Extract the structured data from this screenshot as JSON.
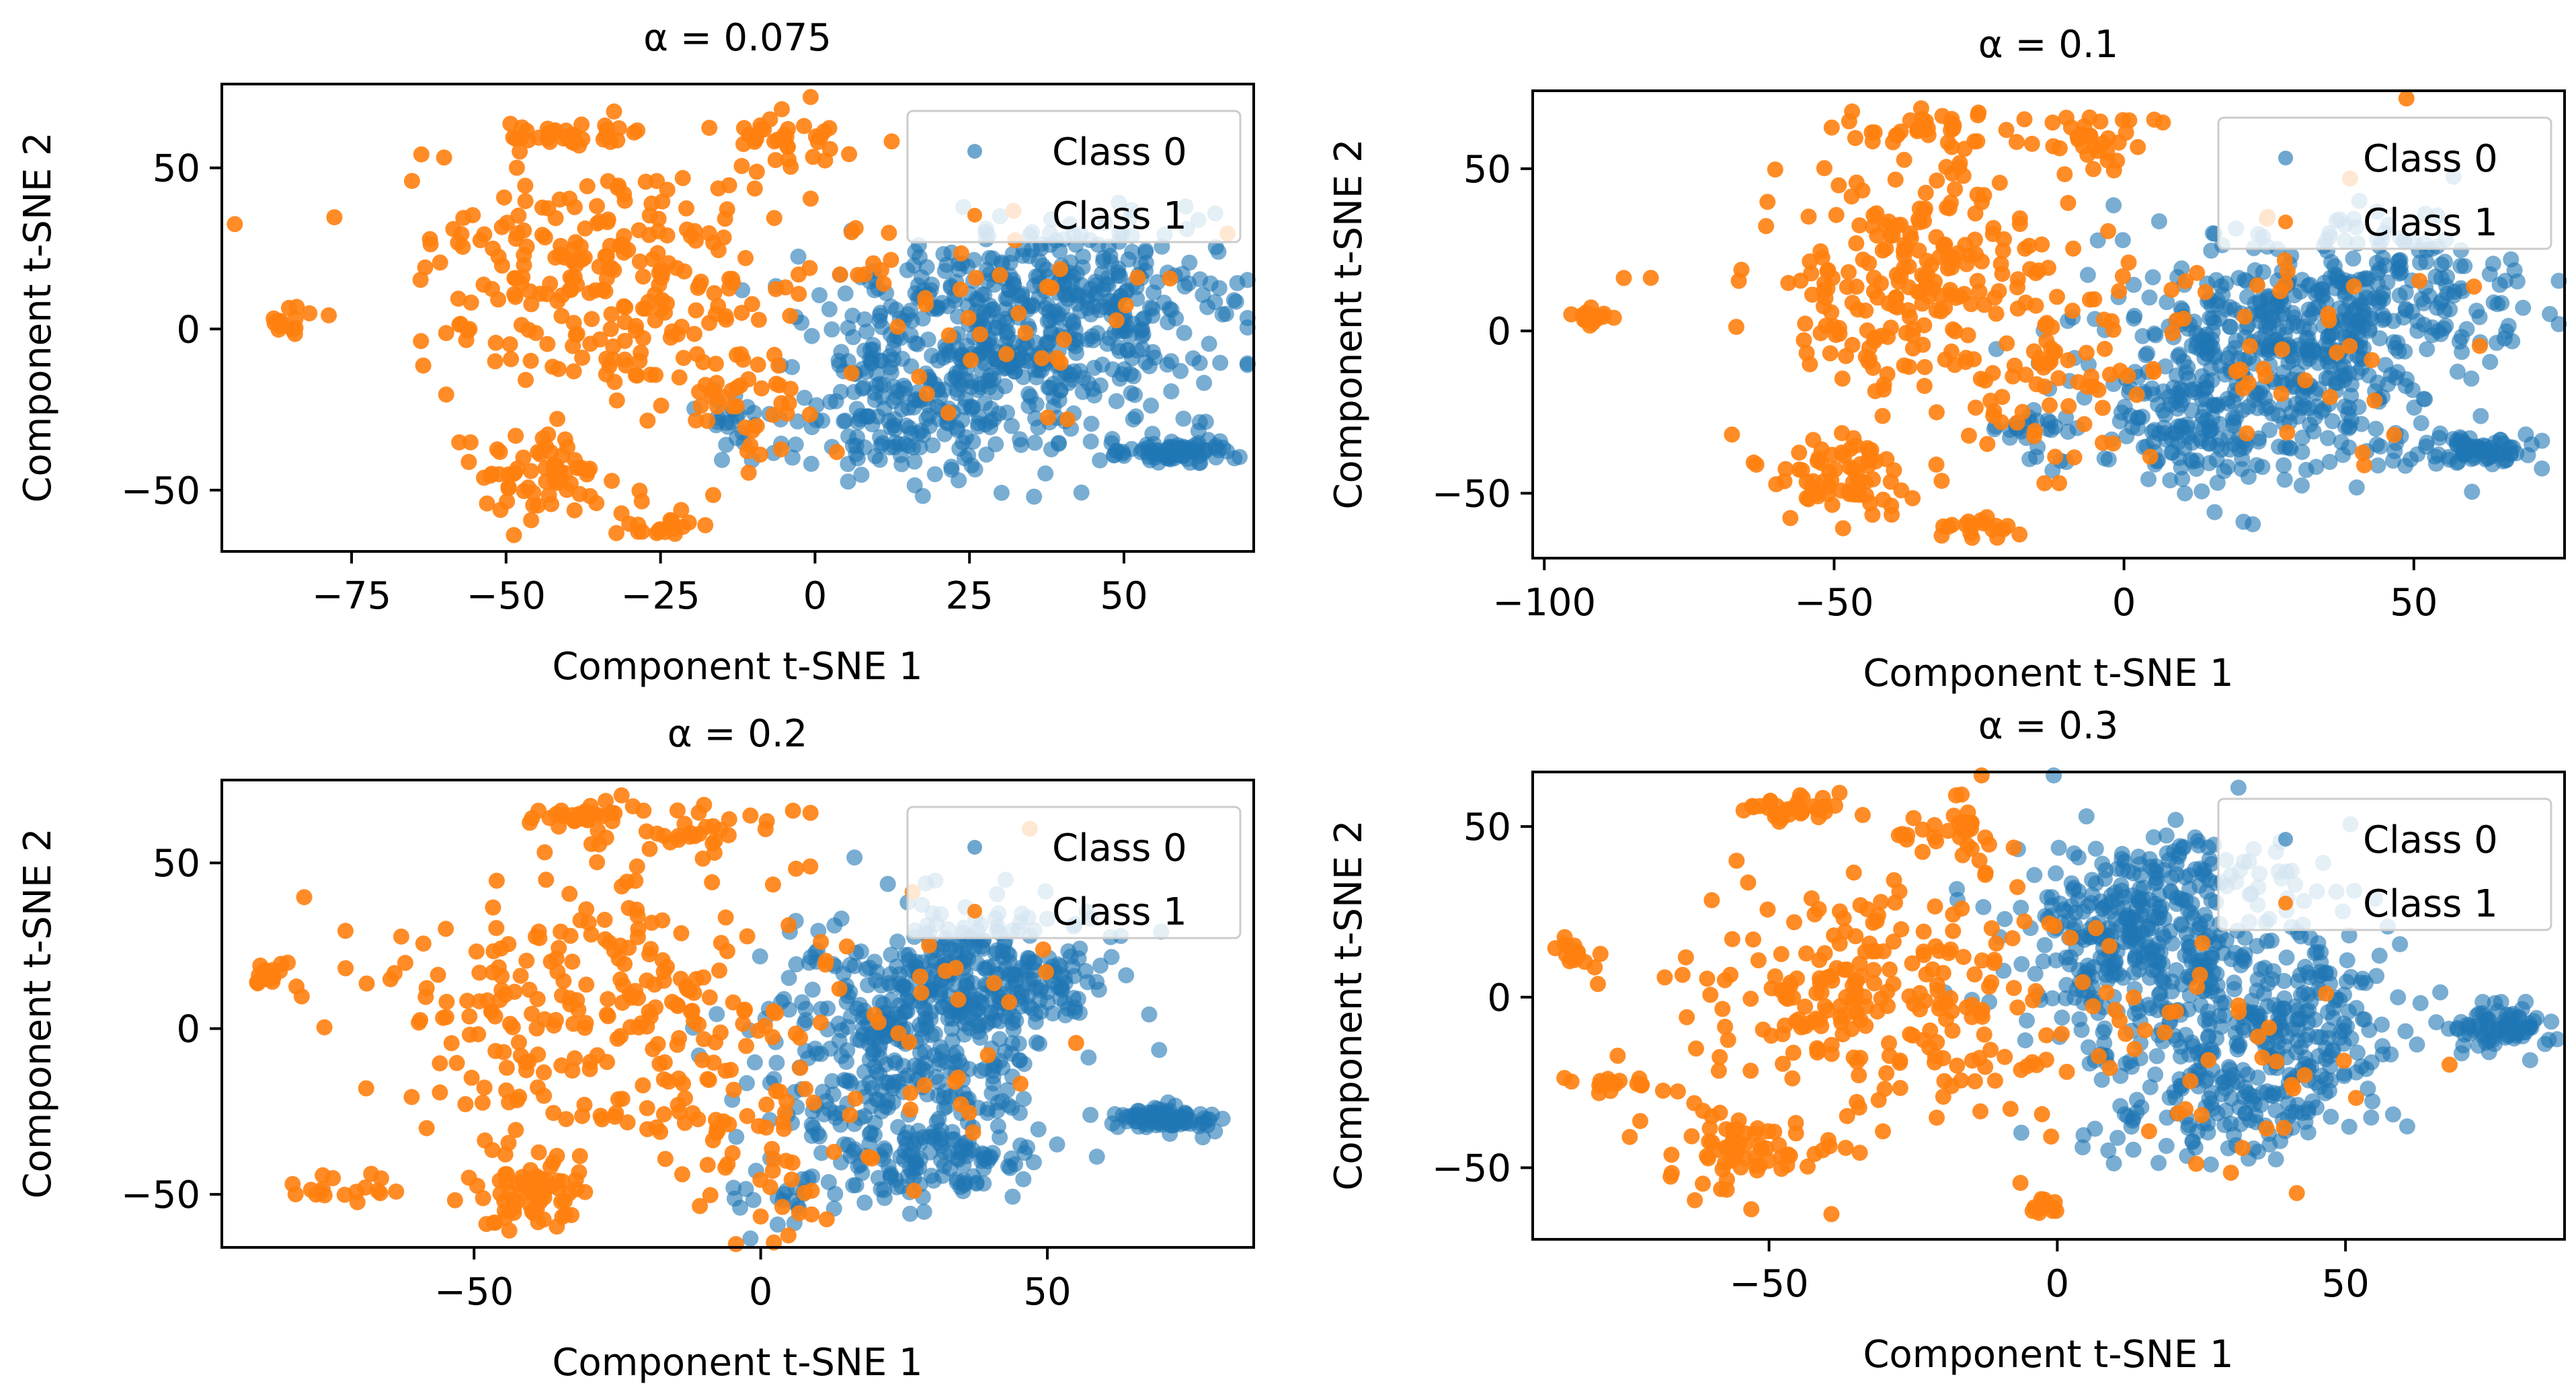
{
  "colors": {
    "class0": "#1f77b4",
    "class1": "#ff7f0e"
  },
  "chart_data": [
    {
      "type": "scatter",
      "title": "α = 0.075",
      "xlabel": "Component t-SNE 1",
      "ylabel": "Component t-SNE 2",
      "xlim": [
        -96,
        71
      ],
      "ylim": [
        -69,
        76
      ],
      "xticks": [
        -75,
        -50,
        -25,
        0,
        25,
        50
      ],
      "yticks": [
        -50,
        0,
        50
      ],
      "grid": false,
      "legend_position": "top-right",
      "series": [
        {
          "name": "Class 0",
          "color": "#1f77b4",
          "clusters": [
            {
              "cx": 28,
              "cy": -8,
              "sx": 15,
              "sy": 17,
              "n": 420
            },
            {
              "cx": 45,
              "cy": 12,
              "sx": 12,
              "sy": 12,
              "n": 200
            },
            {
              "cx": 14,
              "cy": -30,
              "sx": 8,
              "sy": 10,
              "n": 90
            },
            {
              "cx": 58,
              "cy": -38,
              "sx": 5,
              "sy": 2,
              "n": 80
            },
            {
              "cx": -12,
              "cy": -30,
              "sx": 4,
              "sy": 5,
              "n": 25
            }
          ]
        },
        {
          "name": "Class 1",
          "color": "#ff7f0e",
          "clusters": [
            {
              "cx": -35,
              "cy": 15,
              "sx": 16,
              "sy": 18,
              "n": 240
            },
            {
              "cx": -45,
              "cy": -45,
              "sx": 6,
              "sy": 7,
              "n": 70
            },
            {
              "cx": -38,
              "cy": 60,
              "sx": 6,
              "sy": 3,
              "n": 35
            },
            {
              "cx": -5,
              "cy": 60,
              "sx": 6,
              "sy": 5,
              "n": 35
            },
            {
              "cx": -85,
              "cy": 3,
              "sx": 2,
              "sy": 3,
              "n": 15
            },
            {
              "cx": -25,
              "cy": -60,
              "sx": 4,
              "sy": 2,
              "n": 18
            },
            {
              "cx": -10,
              "cy": -20,
              "sx": 8,
              "sy": 15,
              "n": 50
            },
            {
              "cx": 25,
              "cy": 5,
              "sx": 18,
              "sy": 20,
              "n": 45
            }
          ]
        }
      ]
    },
    {
      "type": "scatter",
      "title": "α = 0.1",
      "xlabel": "Component t-SNE 1",
      "ylabel": "Component t-SNE 2",
      "xlim": [
        -102,
        76
      ],
      "ylim": [
        -70,
        74
      ],
      "xticks": [
        -100,
        -50,
        0,
        50
      ],
      "yticks": [
        -50,
        0,
        50
      ],
      "grid": false,
      "legend_position": "top-right",
      "series": [
        {
          "name": "Class 0",
          "color": "#1f77b4",
          "clusters": [
            {
              "cx": 25,
              "cy": -10,
              "sx": 15,
              "sy": 17,
              "n": 420
            },
            {
              "cx": 45,
              "cy": 12,
              "sx": 12,
              "sy": 12,
              "n": 200
            },
            {
              "cx": 12,
              "cy": -32,
              "sx": 8,
              "sy": 10,
              "n": 90
            },
            {
              "cx": 60,
              "cy": -37,
              "sx": 5,
              "sy": 2,
              "n": 80
            },
            {
              "cx": -15,
              "cy": -30,
              "sx": 4,
              "sy": 5,
              "n": 25
            }
          ]
        },
        {
          "name": "Class 1",
          "color": "#ff7f0e",
          "clusters": [
            {
              "cx": -35,
              "cy": 15,
              "sx": 16,
              "sy": 18,
              "n": 240
            },
            {
              "cx": -48,
              "cy": -45,
              "sx": 6,
              "sy": 7,
              "n": 70
            },
            {
              "cx": -35,
              "cy": 62,
              "sx": 7,
              "sy": 3,
              "n": 35
            },
            {
              "cx": -7,
              "cy": 60,
              "sx": 6,
              "sy": 5,
              "n": 35
            },
            {
              "cx": -92,
              "cy": 6,
              "sx": 2,
              "sy": 3,
              "n": 15
            },
            {
              "cx": -25,
              "cy": -61,
              "sx": 4,
              "sy": 2,
              "n": 18
            },
            {
              "cx": -12,
              "cy": -20,
              "sx": 8,
              "sy": 15,
              "n": 50
            },
            {
              "cx": 25,
              "cy": 5,
              "sx": 18,
              "sy": 20,
              "n": 45
            }
          ]
        }
      ]
    },
    {
      "type": "scatter",
      "title": "α = 0.2",
      "xlabel": "Component t-SNE 1",
      "ylabel": "Component t-SNE 2",
      "xlim": [
        -94,
        86
      ],
      "ylim": [
        -66,
        75
      ],
      "xticks": [
        -50,
        0,
        50
      ],
      "yticks": [
        -50,
        0,
        50
      ],
      "grid": false,
      "legend_position": "top-right",
      "series": [
        {
          "name": "Class 0",
          "color": "#1f77b4",
          "clusters": [
            {
              "cx": 25,
              "cy": -5,
              "sx": 13,
              "sy": 20,
              "n": 420
            },
            {
              "cx": 42,
              "cy": 15,
              "sx": 10,
              "sy": 10,
              "n": 180
            },
            {
              "cx": 30,
              "cy": -40,
              "sx": 8,
              "sy": 6,
              "n": 100
            },
            {
              "cx": 70,
              "cy": -27,
              "sx": 5,
              "sy": 2,
              "n": 80
            },
            {
              "cx": 5,
              "cy": -50,
              "sx": 4,
              "sy": 4,
              "n": 25
            }
          ]
        },
        {
          "name": "Class 1",
          "color": "#ff7f0e",
          "clusters": [
            {
              "cx": -30,
              "cy": 5,
              "sx": 18,
              "sy": 20,
              "n": 240
            },
            {
              "cx": -40,
              "cy": -50,
              "sx": 6,
              "sy": 6,
              "n": 70
            },
            {
              "cx": -32,
              "cy": 65,
              "sx": 5,
              "sy": 2,
              "n": 30
            },
            {
              "cx": -10,
              "cy": 60,
              "sx": 6,
              "sy": 5,
              "n": 30
            },
            {
              "cx": -85,
              "cy": 15,
              "sx": 2,
              "sy": 3,
              "n": 15
            },
            {
              "cx": -72,
              "cy": -48,
              "sx": 4,
              "sy": 2,
              "n": 18
            },
            {
              "cx": 0,
              "cy": -40,
              "sx": 8,
              "sy": 12,
              "n": 50
            },
            {
              "cx": 25,
              "cy": 0,
              "sx": 18,
              "sy": 22,
              "n": 45
            }
          ]
        }
      ]
    },
    {
      "type": "scatter",
      "title": "α = 0.3",
      "xlabel": "Component t-SNE 1",
      "ylabel": "Component t-SNE 2",
      "xlim": [
        -91,
        88
      ],
      "ylim": [
        -71,
        66
      ],
      "xticks": [
        -50,
        0,
        50
      ],
      "yticks": [
        -50,
        0,
        50
      ],
      "grid": false,
      "legend_position": "top-right",
      "series": [
        {
          "name": "Class 0",
          "color": "#1f77b4",
          "clusters": [
            {
              "cx": 12,
              "cy": 15,
              "sx": 10,
              "sy": 14,
              "n": 300
            },
            {
              "cx": 38,
              "cy": -10,
              "sx": 10,
              "sy": 16,
              "n": 300
            },
            {
              "cx": 25,
              "cy": -30,
              "sx": 12,
              "sy": 8,
              "n": 100
            },
            {
              "cx": 77,
              "cy": -8,
              "sx": 4,
              "sy": 3,
              "n": 80
            },
            {
              "cx": 25,
              "cy": 35,
              "sx": 12,
              "sy": 8,
              "n": 80
            }
          ]
        },
        {
          "name": "Class 1",
          "color": "#ff7f0e",
          "clusters": [
            {
              "cx": -30,
              "cy": 0,
              "sx": 18,
              "sy": 18,
              "n": 240
            },
            {
              "cx": -55,
              "cy": -45,
              "sx": 8,
              "sy": 7,
              "n": 70
            },
            {
              "cx": -45,
              "cy": 55,
              "sx": 5,
              "sy": 2,
              "n": 30
            },
            {
              "cx": -18,
              "cy": 50,
              "sx": 6,
              "sy": 5,
              "n": 30
            },
            {
              "cx": -83,
              "cy": 13,
              "sx": 2,
              "sy": 3,
              "n": 15
            },
            {
              "cx": -80,
              "cy": -25,
              "sx": 4,
              "sy": 2,
              "n": 15
            },
            {
              "cx": -2,
              "cy": -63,
              "sx": 2,
              "sy": 2,
              "n": 10
            },
            {
              "cx": 20,
              "cy": -20,
              "sx": 18,
              "sy": 20,
              "n": 45
            }
          ]
        }
      ]
    }
  ]
}
